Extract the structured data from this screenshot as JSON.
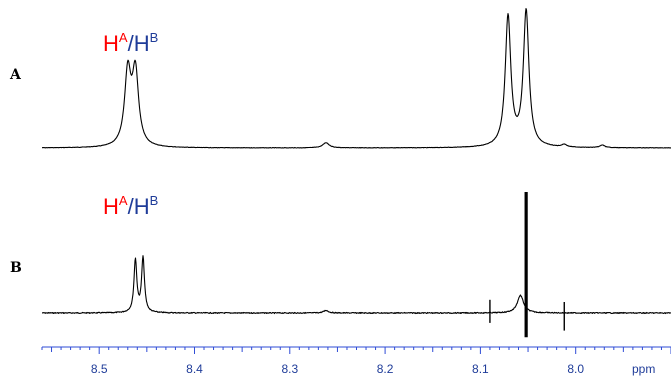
{
  "chart_data": {
    "type": "line",
    "xlabel": "ppm",
    "xlim": [
      8.56,
      7.9
    ],
    "x_reversed": true,
    "x_ticks": [
      8.5,
      8.4,
      8.3,
      8.2,
      8.1,
      8.0
    ],
    "x_tick_labels": [
      "8.5",
      "8.4",
      "8.3",
      "8.2",
      "8.1",
      "8.0"
    ],
    "minor_tick_step": 0.01,
    "grid": false,
    "axis_color": "#2e4bd6",
    "axis_label_color": "#1f3c99",
    "panels": [
      {
        "letter": "A",
        "peak_label": {
          "left": "H",
          "left_sup": "A",
          "sep": "/",
          "right": "H",
          "right_sup": "B",
          "left_color": "#ff0000",
          "right_color": "#1f3c99"
        },
        "peaks": [
          {
            "ppm": 8.47,
            "height": 0.56,
            "width": 0.004
          },
          {
            "ppm": 8.462,
            "height": 0.56,
            "width": 0.004
          },
          {
            "ppm": 8.262,
            "height": 0.04,
            "width": 0.004
          },
          {
            "ppm": 8.071,
            "height": 1.0,
            "width": 0.0035
          },
          {
            "ppm": 8.052,
            "height": 1.04,
            "width": 0.0035
          },
          {
            "ppm": 8.012,
            "height": 0.02,
            "width": 0.003
          },
          {
            "ppm": 7.972,
            "height": 0.02,
            "width": 0.003
          }
        ]
      },
      {
        "letter": "B",
        "peak_label": {
          "left": "H",
          "left_sup": "A",
          "sep": "/",
          "right": "H",
          "right_sup": "B",
          "left_color": "#ff0000",
          "right_color": "#1f3c99"
        },
        "peaks": [
          {
            "ppm": 8.462,
            "height": 0.6,
            "width": 0.0018
          },
          {
            "ppm": 8.454,
            "height": 0.62,
            "width": 0.0018
          },
          {
            "ppm": 8.262,
            "height": 0.03,
            "width": 0.003
          },
          {
            "ppm": 8.058,
            "height": 0.2,
            "width": 0.004
          }
        ],
        "artifacts": [
          {
            "ppm": 8.09,
            "up": 0.12,
            "down": 0.09
          },
          {
            "ppm": 8.052,
            "up": 1.1,
            "down": 0.22
          },
          {
            "ppm": 8.012,
            "up": 0.1,
            "down": 0.16
          }
        ]
      }
    ]
  }
}
